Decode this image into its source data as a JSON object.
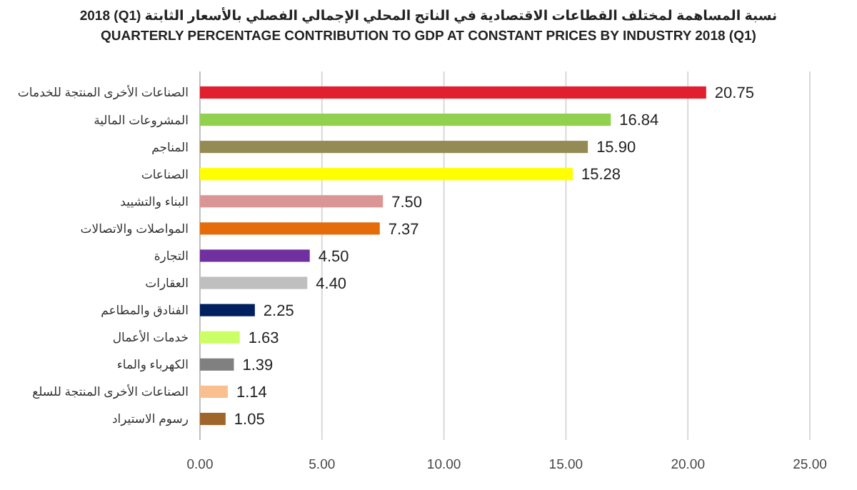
{
  "chart_data": {
    "type": "bar",
    "orientation": "horizontal",
    "title": "نسبة المساهمة لمختلف القطاعات الاقتصادية في الناتج المحلي الإجمالي الفصلي بالأسعار الثابتة (Q1) 2018",
    "subtitle": "QUARTERLY PERCENTAGE CONTRIBUTION TO  GDP AT CONSTANT  PRICES BY INDUSTRY 2018 (Q1)",
    "categories": [
      "الصناعات الأخرى المنتجة للخدمات",
      "المشروعات  المالية",
      "المناجم",
      "الصناعات",
      "البناء والتشييد",
      "المواصلات والاتصالات",
      "التجارة",
      "العقارات",
      "الفنادق والمطاعم",
      "خدمات الأعمال",
      "الكهرباء والماء",
      "الصناعات الأخرى المنتجة للسلع",
      "رسوم الاستيراد"
    ],
    "values": [
      20.75,
      16.84,
      15.9,
      15.28,
      7.5,
      7.37,
      4.5,
      4.4,
      2.25,
      1.63,
      1.39,
      1.14,
      1.05
    ],
    "value_labels": [
      "20.75",
      "16.84",
      "15.90",
      "15.28",
      "7.50",
      "7.37",
      "4.50",
      "4.40",
      "2.25",
      "1.63",
      "1.39",
      "1.14",
      "1.05"
    ],
    "colors": [
      "#e0202e",
      "#92d050",
      "#948a54",
      "#ffff00",
      "#da9694",
      "#e46c0a",
      "#7030a0",
      "#bfbfbf",
      "#002060",
      "#ccff66",
      "#808080",
      "#fabf8f",
      "#a0652a"
    ],
    "xlim": [
      0,
      25
    ],
    "xticks": [
      {
        "value": 0,
        "label": "0.00"
      },
      {
        "value": 5,
        "label": "5.00"
      },
      {
        "value": 10,
        "label": "10.00"
      },
      {
        "value": 15,
        "label": "15.00"
      },
      {
        "value": 20,
        "label": "20.00"
      },
      {
        "value": 25,
        "label": "25.00"
      }
    ],
    "grid": "x"
  }
}
